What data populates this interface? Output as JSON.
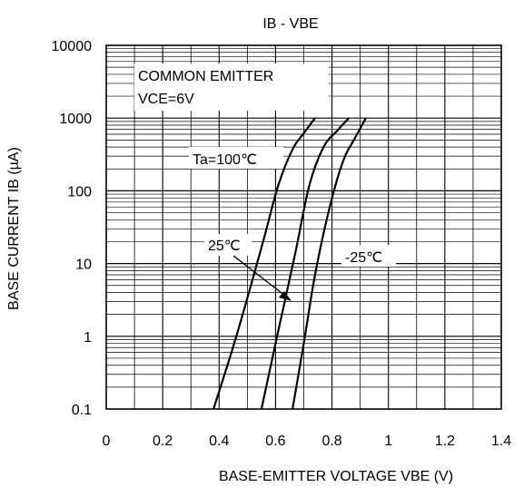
{
  "chart_data": {
    "type": "line",
    "title": "IB - VBE",
    "xlabel": "BASE-EMITTER VOLTAGE  VBE  (V)",
    "ylabel": "BASE CURRENT   IB (µA)",
    "x_scale": "linear",
    "y_scale": "log",
    "xlim": [
      0,
      1.4
    ],
    "ylim": [
      0.1,
      10000
    ],
    "x_ticks": [
      "0",
      "0.2",
      "0.4",
      "0.6",
      "0.8",
      "1",
      "1.2",
      "1.4"
    ],
    "y_ticks": [
      "0.1",
      "1",
      "10",
      "100",
      "1000",
      "10000"
    ],
    "grid": true,
    "annotations": {
      "box_line1": "COMMON EMITTER",
      "box_line2": "VCE=6V",
      "label_ta100": "Ta=100℃",
      "label_25": "25℃",
      "label_m25": "-25℃"
    },
    "series": [
      {
        "label_key": "label_ta100",
        "x": [
          0.38,
          0.45,
          0.51,
          0.56,
          0.61,
          0.66,
          0.7,
          0.74
        ],
        "y": [
          0.1,
          0.72,
          4.6,
          23,
          120,
          370,
          620,
          1000
        ]
      },
      {
        "label_key": "label_25",
        "x": [
          0.55,
          0.61,
          0.67,
          0.72,
          0.77,
          0.82,
          0.86
        ],
        "y": [
          0.1,
          1.2,
          14,
          120,
          400,
          680,
          1000
        ]
      },
      {
        "label_key": "label_m25",
        "x": [
          0.66,
          0.7,
          0.74,
          0.79,
          0.84,
          0.88,
          0.92
        ],
        "y": [
          0.1,
          0.8,
          7,
          56,
          260,
          520,
          1000
        ]
      }
    ]
  }
}
